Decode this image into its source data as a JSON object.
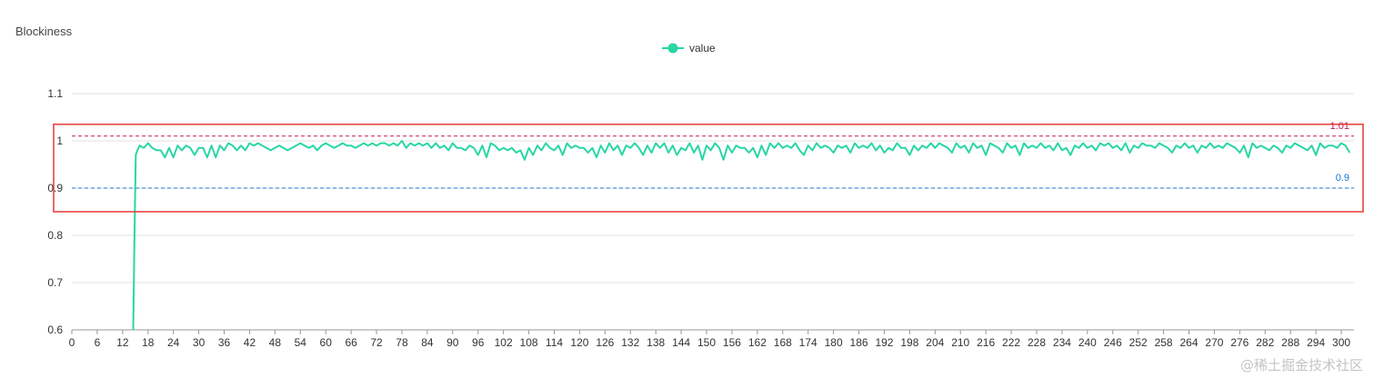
{
  "chart_data": {
    "type": "line",
    "title": "Blockiness",
    "xlabel": "",
    "ylabel": "",
    "ylim": [
      0.6,
      1.1
    ],
    "xlim": [
      0,
      303
    ],
    "y_ticks": [
      0.6,
      0.7,
      0.8,
      0.9,
      1,
      1.1
    ],
    "x_ticks": [
      0,
      6,
      12,
      18,
      24,
      30,
      36,
      42,
      48,
      54,
      60,
      66,
      72,
      78,
      84,
      90,
      96,
      102,
      108,
      114,
      120,
      126,
      132,
      138,
      144,
      150,
      156,
      162,
      168,
      174,
      180,
      186,
      192,
      198,
      204,
      210,
      216,
      222,
      228,
      234,
      240,
      246,
      252,
      258,
      264,
      270,
      276,
      282,
      288,
      294,
      300
    ],
    "grid": true,
    "legend": "top-center",
    "series": [
      {
        "name": "value",
        "color": "#2ad6a4",
        "x": [
          14.5,
          14.8,
          15.1,
          15.5,
          16,
          17,
          18,
          19,
          20,
          21,
          22,
          23,
          24,
          25,
          26,
          27,
          28,
          29,
          30,
          31,
          32,
          33,
          34,
          35,
          36,
          37,
          38,
          39,
          40,
          41,
          42,
          43,
          44,
          45,
          46,
          47,
          48,
          49,
          50,
          51,
          52,
          53,
          54,
          55,
          56,
          57,
          58,
          59,
          60,
          61,
          62,
          63,
          64,
          65,
          66,
          67,
          68,
          69,
          70,
          71,
          72,
          73,
          74,
          75,
          76,
          77,
          78,
          79,
          80,
          81,
          82,
          83,
          84,
          85,
          86,
          87,
          88,
          89,
          90,
          91,
          92,
          93,
          94,
          95,
          96,
          97,
          98,
          99,
          100,
          101,
          102,
          103,
          104,
          105,
          106,
          107,
          108,
          109,
          110,
          111,
          112,
          113,
          114,
          115,
          116,
          117,
          118,
          119,
          120,
          121,
          122,
          123,
          124,
          125,
          126,
          127,
          128,
          129,
          130,
          131,
          132,
          133,
          134,
          135,
          136,
          137,
          138,
          139,
          140,
          141,
          142,
          143,
          144,
          145,
          146,
          147,
          148,
          149,
          150,
          151,
          152,
          153,
          154,
          155,
          156,
          157,
          158,
          159,
          160,
          161,
          162,
          163,
          164,
          165,
          166,
          167,
          168,
          169,
          170,
          171,
          172,
          173,
          174,
          175,
          176,
          177,
          178,
          179,
          180,
          181,
          182,
          183,
          184,
          185,
          186,
          187,
          188,
          189,
          190,
          191,
          192,
          193,
          194,
          195,
          196,
          197,
          198,
          199,
          200,
          201,
          202,
          203,
          204,
          205,
          206,
          207,
          208,
          209,
          210,
          211,
          212,
          213,
          214,
          215,
          216,
          217,
          218,
          219,
          220,
          221,
          222,
          223,
          224,
          225,
          226,
          227,
          228,
          229,
          230,
          231,
          232,
          233,
          234,
          235,
          236,
          237,
          238,
          239,
          240,
          241,
          242,
          243,
          244,
          245,
          246,
          247,
          248,
          249,
          250,
          251,
          252,
          253,
          254,
          255,
          256,
          257,
          258,
          259,
          260,
          261,
          262,
          263,
          264,
          265,
          266,
          267,
          268,
          269,
          270,
          271,
          272,
          273,
          274,
          275,
          276,
          277,
          278,
          279,
          280,
          281,
          282,
          283,
          284,
          285,
          286,
          287,
          288,
          289,
          290,
          291,
          292,
          293,
          294,
          295,
          296,
          297,
          298,
          299,
          300,
          301,
          302
        ],
        "values": [
          0.6,
          0.8,
          0.97,
          0.98,
          0.99,
          0.985,
          0.995,
          0.985,
          0.98,
          0.98,
          0.965,
          0.985,
          0.965,
          0.99,
          0.98,
          0.99,
          0.985,
          0.97,
          0.985,
          0.985,
          0.965,
          0.99,
          0.965,
          0.99,
          0.98,
          0.995,
          0.99,
          0.98,
          0.99,
          0.98,
          0.995,
          0.99,
          0.995,
          0.99,
          0.985,
          0.98,
          0.985,
          0.99,
          0.985,
          0.98,
          0.985,
          0.99,
          0.995,
          0.99,
          0.985,
          0.99,
          0.98,
          0.99,
          0.995,
          0.99,
          0.985,
          0.99,
          0.995,
          0.99,
          0.99,
          0.985,
          0.99,
          0.995,
          0.99,
          0.995,
          0.99,
          0.995,
          0.995,
          0.99,
          0.995,
          0.99,
          1.0,
          0.985,
          0.995,
          0.99,
          0.995,
          0.99,
          0.995,
          0.985,
          0.995,
          0.985,
          0.99,
          0.98,
          0.995,
          0.985,
          0.985,
          0.98,
          0.99,
          0.985,
          0.97,
          0.99,
          0.965,
          0.995,
          0.99,
          0.98,
          0.985,
          0.98,
          0.985,
          0.975,
          0.98,
          0.96,
          0.985,
          0.97,
          0.99,
          0.98,
          0.995,
          0.985,
          0.98,
          0.99,
          0.97,
          0.995,
          0.985,
          0.99,
          0.985,
          0.985,
          0.975,
          0.985,
          0.965,
          0.99,
          0.975,
          0.995,
          0.98,
          0.99,
          0.97,
          0.99,
          0.985,
          0.995,
          0.985,
          0.97,
          0.99,
          0.975,
          0.995,
          0.985,
          0.995,
          0.975,
          0.99,
          0.97,
          0.985,
          0.98,
          0.995,
          0.975,
          0.99,
          0.96,
          0.99,
          0.98,
          0.995,
          0.985,
          0.96,
          0.99,
          0.975,
          0.99,
          0.985,
          0.985,
          0.975,
          0.985,
          0.965,
          0.99,
          0.97,
          0.995,
          0.985,
          0.995,
          0.985,
          0.99,
          0.985,
          0.995,
          0.98,
          0.97,
          0.99,
          0.98,
          0.995,
          0.985,
          0.99,
          0.985,
          0.975,
          0.99,
          0.985,
          0.99,
          0.975,
          0.995,
          0.985,
          0.99,
          0.985,
          0.995,
          0.98,
          0.99,
          0.975,
          0.985,
          0.98,
          0.995,
          0.985,
          0.985,
          0.97,
          0.99,
          0.98,
          0.99,
          0.985,
          0.995,
          0.985,
          0.995,
          0.99,
          0.985,
          0.975,
          0.995,
          0.985,
          0.99,
          0.975,
          0.995,
          0.985,
          0.99,
          0.97,
          0.995,
          0.99,
          0.985,
          0.975,
          0.995,
          0.985,
          0.99,
          0.97,
          0.995,
          0.985,
          0.99,
          0.985,
          0.995,
          0.985,
          0.99,
          0.98,
          0.995,
          0.98,
          0.985,
          0.97,
          0.99,
          0.985,
          0.995,
          0.985,
          0.99,
          0.98,
          0.995,
          0.99,
          0.995,
          0.985,
          0.99,
          0.98,
          0.995,
          0.975,
          0.99,
          0.985,
          0.995,
          0.99,
          0.99,
          0.985,
          0.995,
          0.99,
          0.985,
          0.975,
          0.99,
          0.985,
          0.995,
          0.985,
          0.99,
          0.975,
          0.99,
          0.985,
          0.995,
          0.985,
          0.99,
          0.985,
          0.995,
          0.99,
          0.985,
          0.975,
          0.99,
          0.965,
          0.995,
          0.985,
          0.99,
          0.985,
          0.98,
          0.99,
          0.985,
          0.975,
          0.99,
          0.985,
          0.995,
          0.99,
          0.985,
          0.98,
          0.99,
          0.97,
          0.995,
          0.985,
          0.99,
          0.99,
          0.985,
          0.995,
          0.99,
          0.975
        ]
      }
    ],
    "mark_lines": [
      {
        "value": 1.01,
        "label": "1.01",
        "color": "#c2185b"
      },
      {
        "value": 0.9,
        "label": "0.9",
        "color": "#1976d2"
      }
    ],
    "highlight_box": {
      "y_from": 0.85,
      "y_to": 1.035,
      "color": "#e53935"
    }
  },
  "watermark": "@稀土掘金技术社区"
}
